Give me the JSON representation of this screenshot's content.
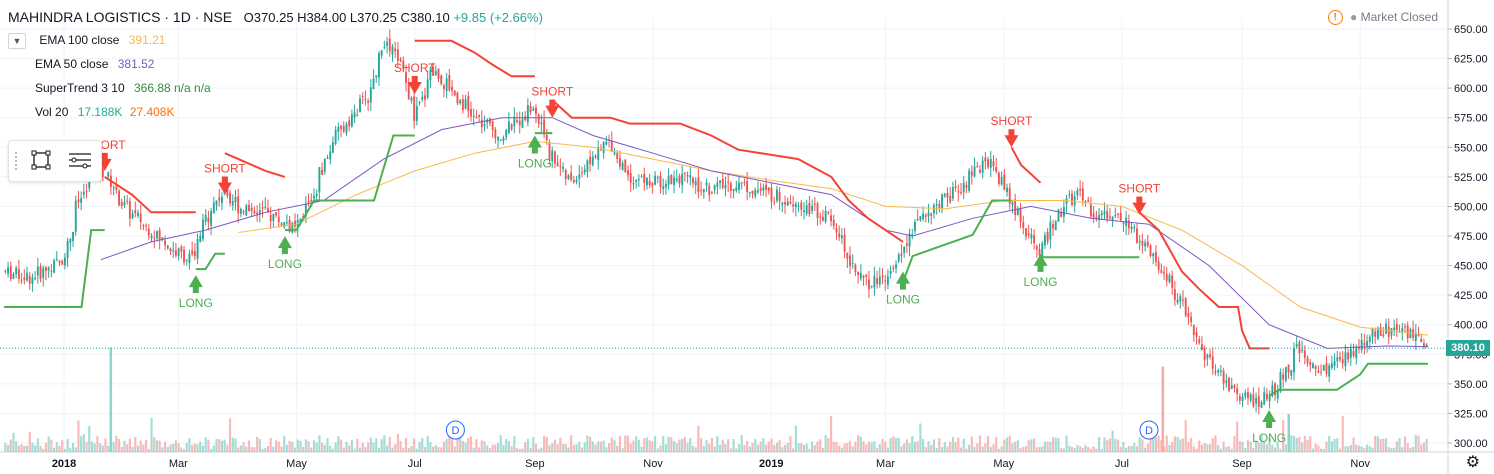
{
  "header": {
    "symbol": "MAHINDRA LOGISTICS · 1D · NSE",
    "ohlc": "O370.25 H384.00 L370.25 C380.10",
    "change": "+9.85 (+2.66%)"
  },
  "indicators": [
    {
      "name": "EMA 100 close",
      "value": "391.21",
      "color": "#f9b94a"
    },
    {
      "name": "EMA 50 close",
      "value": "381.52",
      "color": "#7e57c2"
    },
    {
      "name": "SuperTrend 3 10",
      "value": "366.88 n/a n/a",
      "color": "#388e3c"
    },
    {
      "name": "Vol 20",
      "value": "17.188K",
      "value2": "27.408K",
      "color": "#22ab94",
      "color2": "#ff6d00"
    }
  ],
  "market_status": "Market Closed",
  "last_price": "380.10",
  "colors": {
    "up": "#26a69a",
    "down": "#ef5350",
    "st_up": "#4caf50",
    "st_down": "#f44336",
    "vol_up": "#8fd3cc",
    "vol_down": "#f5a9a8"
  },
  "icons": [
    "warning-icon",
    "rectangle-tool-icon",
    "object-list-icon",
    "settings-icon",
    "chevron-down-icon"
  ],
  "chart_data": {
    "type": "candlestick",
    "ylim": [
      300,
      650
    ],
    "y_ticks": [
      "650.00",
      "625.00",
      "600.00",
      "575.00",
      "550.00",
      "525.00",
      "500.00",
      "475.00",
      "450.00",
      "425.00",
      "400.00",
      "375.00",
      "350.00",
      "325.00",
      "300.00"
    ],
    "x_ticks": [
      "2018",
      "Mar",
      "May",
      "Jul",
      "Sep",
      "Nov",
      "2019",
      "Mar",
      "May",
      "Jul",
      "Sep",
      "Nov"
    ],
    "x_range": [
      "2017-12-01",
      "2019-12-06"
    ],
    "close_series": [
      [
        "2017-12-01",
        445
      ],
      [
        "2017-12-15",
        440
      ],
      [
        "2018-01-01",
        455
      ],
      [
        "2018-01-08",
        500
      ],
      [
        "2018-01-15",
        525
      ],
      [
        "2018-01-22",
        530
      ],
      [
        "2018-02-01",
        500
      ],
      [
        "2018-02-15",
        480
      ],
      [
        "2018-03-01",
        460
      ],
      [
        "2018-03-10",
        455
      ],
      [
        "2018-03-15",
        490
      ],
      [
        "2018-03-25",
        515
      ],
      [
        "2018-04-01",
        500
      ],
      [
        "2018-04-15",
        495
      ],
      [
        "2018-05-01",
        480
      ],
      [
        "2018-05-10",
        510
      ],
      [
        "2018-05-20",
        555
      ],
      [
        "2018-06-01",
        580
      ],
      [
        "2018-06-10",
        600
      ],
      [
        "2018-06-15",
        640
      ],
      [
        "2018-06-25",
        620
      ],
      [
        "2018-07-01",
        570
      ],
      [
        "2018-07-10",
        615
      ],
      [
        "2018-07-20",
        600
      ],
      [
        "2018-08-01",
        575
      ],
      [
        "2018-08-15",
        560
      ],
      [
        "2018-09-01",
        585
      ],
      [
        "2018-09-10",
        545
      ],
      [
        "2018-09-20",
        520
      ],
      [
        "2018-10-01",
        540
      ],
      [
        "2018-10-10",
        555
      ],
      [
        "2018-10-20",
        525
      ],
      [
        "2018-11-01",
        520
      ],
      [
        "2018-11-15",
        525
      ],
      [
        "2018-12-01",
        515
      ],
      [
        "2018-12-15",
        520
      ],
      [
        "2019-01-01",
        510
      ],
      [
        "2019-01-15",
        505
      ],
      [
        "2019-02-01",
        490
      ],
      [
        "2019-02-10",
        460
      ],
      [
        "2019-02-20",
        435
      ],
      [
        "2019-03-01",
        440
      ],
      [
        "2019-03-10",
        460
      ],
      [
        "2019-03-20",
        490
      ],
      [
        "2019-04-01",
        505
      ],
      [
        "2019-04-15",
        525
      ],
      [
        "2019-04-25",
        540
      ],
      [
        "2019-05-01",
        520
      ],
      [
        "2019-05-10",
        490
      ],
      [
        "2019-05-20",
        460
      ],
      [
        "2019-06-01",
        500
      ],
      [
        "2019-06-10",
        510
      ],
      [
        "2019-06-20",
        490
      ],
      [
        "2019-07-01",
        495
      ],
      [
        "2019-07-10",
        475
      ],
      [
        "2019-07-20",
        455
      ],
      [
        "2019-08-01",
        420
      ],
      [
        "2019-08-10",
        385
      ],
      [
        "2019-08-20",
        360
      ],
      [
        "2019-09-01",
        340
      ],
      [
        "2019-09-10",
        335
      ],
      [
        "2019-09-20",
        345
      ],
      [
        "2019-10-01",
        380
      ],
      [
        "2019-10-10",
        360
      ],
      [
        "2019-10-20",
        365
      ],
      [
        "2019-11-01",
        380
      ],
      [
        "2019-11-10",
        395
      ],
      [
        "2019-11-20",
        395
      ],
      [
        "2019-12-01",
        390
      ],
      [
        "2019-12-06",
        380.1
      ]
    ],
    "supertrend_up": [
      [
        [
          "2017-12-01",
          415
        ],
        [
          "2018-01-10",
          415
        ],
        [
          "2018-01-15",
          480
        ],
        [
          "2018-01-22",
          480
        ]
      ],
      [
        [
          "2018-03-10",
          447
        ],
        [
          "2018-03-15",
          447
        ],
        [
          "2018-03-20",
          460
        ],
        [
          "2018-03-25",
          460
        ]
      ],
      [
        [
          "2018-04-25",
          480
        ],
        [
          "2018-05-01",
          480
        ],
        [
          "2018-05-10",
          505
        ],
        [
          "2018-06-10",
          505
        ],
        [
          "2018-06-20",
          560
        ],
        [
          "2018-07-01",
          560
        ]
      ],
      [
        [
          "2018-09-01",
          562
        ],
        [
          "2018-09-10",
          562
        ]
      ],
      [
        [
          "2019-03-10",
          436
        ],
        [
          "2019-03-15",
          458
        ],
        [
          "2019-04-15",
          476
        ],
        [
          "2019-04-25",
          505
        ],
        [
          "2019-05-05",
          505
        ]
      ],
      [
        [
          "2019-05-20",
          457
        ],
        [
          "2019-06-01",
          457
        ],
        [
          "2019-06-05",
          457
        ],
        [
          "2019-07-10",
          457
        ]
      ],
      [
        [
          "2019-09-15",
          340
        ],
        [
          "2019-09-20",
          345
        ],
        [
          "2019-10-20",
          345
        ],
        [
          "2019-11-01",
          358
        ],
        [
          "2019-11-05",
          367
        ],
        [
          "2019-12-06",
          367
        ]
      ]
    ],
    "supertrend_down": [
      [
        [
          "2018-01-22",
          525
        ],
        [
          "2018-02-05",
          510
        ],
        [
          "2018-02-15",
          495
        ],
        [
          "2018-03-01",
          495
        ],
        [
          "2018-03-10",
          495
        ]
      ],
      [
        [
          "2018-03-25",
          545
        ],
        [
          "2018-04-01",
          540
        ],
        [
          "2018-04-15",
          530
        ],
        [
          "2018-04-25",
          525
        ]
      ],
      [
        [
          "2018-07-01",
          640
        ],
        [
          "2018-07-10",
          640
        ],
        [
          "2018-07-20",
          640
        ],
        [
          "2018-08-01",
          630
        ],
        [
          "2018-08-10",
          620
        ],
        [
          "2018-08-20",
          610
        ],
        [
          "2018-09-01",
          610
        ]
      ],
      [
        [
          "2018-09-10",
          590
        ],
        [
          "2018-09-20",
          575
        ],
        [
          "2018-10-10",
          575
        ],
        [
          "2018-10-20",
          570
        ],
        [
          "2018-11-15",
          570
        ],
        [
          "2018-12-01",
          560
        ],
        [
          "2018-12-15",
          548
        ],
        [
          "2019-01-15",
          540
        ],
        [
          "2019-02-01",
          525
        ],
        [
          "2019-02-10",
          505
        ],
        [
          "2019-02-20",
          490
        ],
        [
          "2019-03-01",
          480
        ],
        [
          "2019-03-10",
          470
        ]
      ],
      [
        [
          "2019-05-05",
          550
        ],
        [
          "2019-05-10",
          535
        ],
        [
          "2019-05-20",
          520
        ]
      ],
      [
        [
          "2019-07-10",
          495
        ],
        [
          "2019-07-20",
          480
        ],
        [
          "2019-08-01",
          445
        ],
        [
          "2019-08-10",
          430
        ],
        [
          "2019-08-20",
          415
        ],
        [
          "2019-08-30",
          415
        ],
        [
          "2019-09-01",
          395
        ],
        [
          "2019-09-05",
          380
        ],
        [
          "2019-09-15",
          380
        ]
      ]
    ],
    "ema50": [
      [
        "2018-01-20",
        455
      ],
      [
        "2018-02-15",
        470
      ],
      [
        "2018-03-15",
        480
      ],
      [
        "2018-04-15",
        495
      ],
      [
        "2018-05-15",
        505
      ],
      [
        "2018-06-15",
        540
      ],
      [
        "2018-07-15",
        565
      ],
      [
        "2018-08-15",
        575
      ],
      [
        "2018-09-10",
        575
      ],
      [
        "2018-10-01",
        560
      ],
      [
        "2018-11-01",
        545
      ],
      [
        "2018-12-01",
        530
      ],
      [
        "2019-01-01",
        520
      ],
      [
        "2019-02-01",
        510
      ],
      [
        "2019-03-01",
        480
      ],
      [
        "2019-03-15",
        475
      ],
      [
        "2019-04-15",
        490
      ],
      [
        "2019-05-15",
        500
      ],
      [
        "2019-06-15",
        490
      ],
      [
        "2019-07-15",
        485
      ],
      [
        "2019-08-15",
        450
      ],
      [
        "2019-09-15",
        400
      ],
      [
        "2019-10-15",
        380
      ],
      [
        "2019-11-15",
        382
      ],
      [
        "2019-12-06",
        381.52
      ]
    ],
    "ema100": [
      [
        "2018-04-01",
        478
      ],
      [
        "2018-05-01",
        485
      ],
      [
        "2018-06-01",
        510
      ],
      [
        "2018-07-01",
        530
      ],
      [
        "2018-08-01",
        545
      ],
      [
        "2018-09-01",
        555
      ],
      [
        "2018-10-01",
        550
      ],
      [
        "2018-11-01",
        540
      ],
      [
        "2018-12-01",
        530
      ],
      [
        "2019-01-01",
        522
      ],
      [
        "2019-02-01",
        515
      ],
      [
        "2019-03-01",
        500
      ],
      [
        "2019-04-01",
        498
      ],
      [
        "2019-05-01",
        505
      ],
      [
        "2019-06-01",
        505
      ],
      [
        "2019-07-01",
        500
      ],
      [
        "2019-08-01",
        480
      ],
      [
        "2019-09-01",
        450
      ],
      [
        "2019-10-01",
        415
      ],
      [
        "2019-11-01",
        398
      ],
      [
        "2019-12-06",
        391.21
      ]
    ],
    "signals": [
      {
        "type": "SHORT",
        "date": "2018-01-22",
        "price": 525
      },
      {
        "type": "LONG",
        "date": "2018-03-10",
        "price": 447
      },
      {
        "type": "SHORT",
        "date": "2018-03-25",
        "price": 505
      },
      {
        "type": "LONG",
        "date": "2018-04-25",
        "price": 480
      },
      {
        "type": "SHORT",
        "date": "2018-07-01",
        "price": 590
      },
      {
        "type": "LONG",
        "date": "2018-09-01",
        "price": 565
      },
      {
        "type": "SHORT",
        "date": "2018-09-10",
        "price": 570
      },
      {
        "type": "LONG",
        "date": "2019-03-10",
        "price": 450
      },
      {
        "type": "SHORT",
        "date": "2019-05-05",
        "price": 545
      },
      {
        "type": "LONG",
        "date": "2019-05-20",
        "price": 465
      },
      {
        "type": "SHORT",
        "date": "2019-07-10",
        "price": 488
      },
      {
        "type": "LONG",
        "date": "2019-09-15",
        "price": 333
      }
    ],
    "dividend_markers": [
      {
        "label": "D",
        "date": "2018-07-22"
      },
      {
        "label": "D",
        "date": "2019-07-15"
      }
    ]
  }
}
